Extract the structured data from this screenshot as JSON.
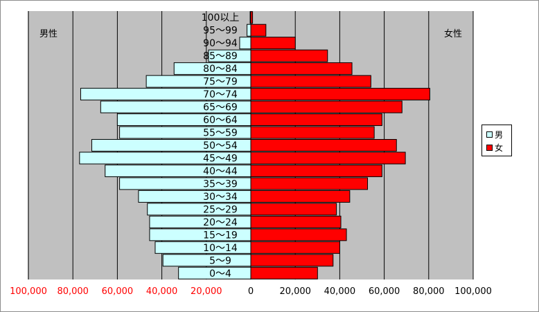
{
  "chart_data": {
    "type": "bar",
    "orientation": "horizontal",
    "layout": "population-pyramid",
    "categories": [
      "100以上",
      "95～99",
      "90～94",
      "85～89",
      "80～84",
      "75～79",
      "70～74",
      "65～69",
      "60～64",
      "55～59",
      "50～54",
      "45～49",
      "40～44",
      "35～39",
      "30～34",
      "25～29",
      "20～24",
      "15～19",
      "10～14",
      "5～9",
      "0～4"
    ],
    "series": [
      {
        "name": "男",
        "side": "left",
        "color": "#ccffff",
        "values": [
          300,
          1700,
          5000,
          19000,
          34500,
          47000,
          76500,
          67500,
          60000,
          59000,
          71500,
          77000,
          65500,
          59000,
          50500,
          46500,
          45500,
          45500,
          43000,
          39500,
          32500
        ]
      },
      {
        "name": "女",
        "side": "right",
        "color": "#ff0000",
        "values": [
          800,
          6800,
          20000,
          34500,
          45500,
          54000,
          80500,
          68000,
          59000,
          55500,
          65500,
          69500,
          59000,
          52500,
          44500,
          38500,
          40500,
          43000,
          40000,
          37000,
          30000
        ]
      }
    ],
    "left_label": "男性",
    "right_label": "女性",
    "xlim": [
      -100000,
      100000
    ],
    "xticks": [
      -100000,
      -80000,
      -60000,
      -40000,
      -20000,
      0,
      20000,
      40000,
      60000,
      80000,
      100000
    ],
    "xtick_labels": [
      "100,000",
      "80,000",
      "60,000",
      "40,000",
      "20,000",
      "0",
      "20,000",
      "40,000",
      "60,000",
      "80,000",
      "100,000"
    ],
    "left_tick_color": "#ff0000",
    "right_tick_color": "#000000",
    "plot_background": "#c0c0c0",
    "grid": true,
    "legend_placement": "right"
  }
}
